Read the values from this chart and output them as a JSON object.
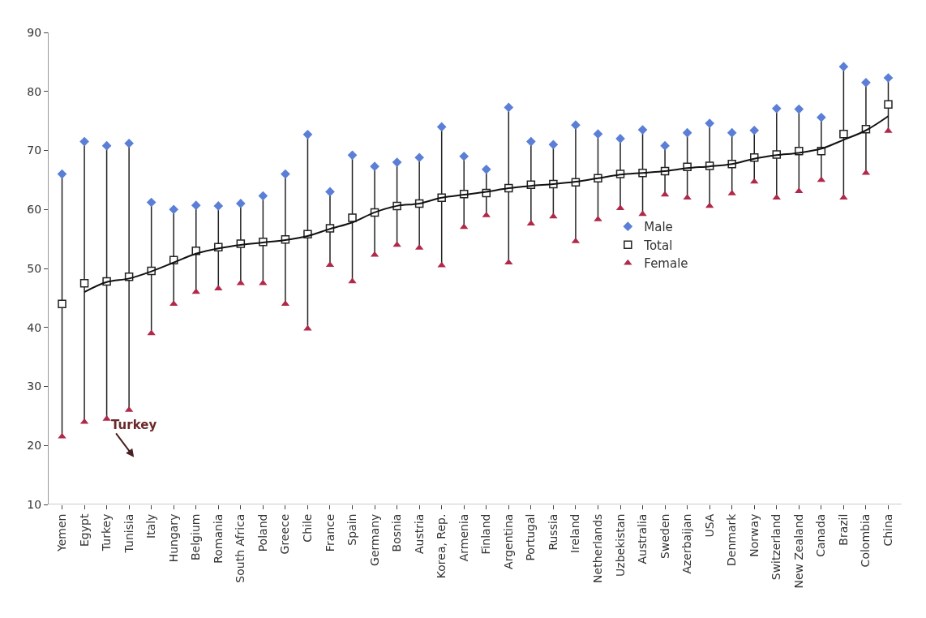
{
  "chart_data": {
    "type": "scatter",
    "categories": [
      "Yemen",
      "Egypt",
      "Turkey",
      "Tunisia",
      "Italy",
      "Hungary",
      "Belgium",
      "Romania",
      "South Africa",
      "Poland",
      "Greece",
      "Chile",
      "France",
      "Spain",
      "Germany",
      "Bosnia",
      "Austria",
      "Korea, Rep.",
      "Armenia",
      "Finland",
      "Argentina",
      "Portugal",
      "Russia",
      "Ireland",
      "Netherlands",
      "Uzbekistan",
      "Australia",
      "Sweden",
      "Azerbaijan",
      "USA",
      "Denmark",
      "Norway",
      "Switzerland",
      "New Zealand",
      "Canada",
      "Brazil",
      "Colombia",
      "China"
    ],
    "series": [
      {
        "name": "Male",
        "color": "#5b7fd6",
        "marker": "diamond",
        "values": [
          66,
          71.5,
          70.8,
          71.2,
          61.2,
          60,
          60.7,
          60.6,
          61,
          62.3,
          66,
          72.7,
          63,
          69.2,
          67.3,
          68,
          68.8,
          74,
          69,
          66.8,
          77.3,
          71.5,
          71,
          74.3,
          72.8,
          72,
          73.5,
          70.8,
          73,
          74.6,
          73,
          73.4,
          77.1,
          77,
          75.6,
          84.2,
          81.5,
          82.3
        ]
      },
      {
        "name": "Total",
        "color": "#222222",
        "marker": "square",
        "values": [
          44,
          47.5,
          47.8,
          48.6,
          49.6,
          51.4,
          53,
          53.6,
          54.2,
          54.5,
          54.9,
          55.8,
          56.8,
          58.6,
          59.5,
          60.6,
          61,
          62,
          62.6,
          62.8,
          63.6,
          64.2,
          64.3,
          64.6,
          65.3,
          66,
          66.2,
          66.5,
          67.2,
          67.4,
          67.7,
          68.8,
          69.3,
          69.9,
          69.9,
          72.8,
          73.6,
          77.8
        ]
      },
      {
        "name": "Female",
        "color": "#b0294a",
        "marker": "triangle",
        "values": [
          21.5,
          24,
          24.5,
          26,
          39,
          44,
          46,
          46.6,
          47.5,
          47.5,
          44,
          39.8,
          50.6,
          47.8,
          52.3,
          54,
          53.5,
          50.5,
          57,
          59,
          51,
          57.6,
          58.8,
          54.6,
          58.3,
          60.2,
          59.2,
          62.5,
          62,
          60.6,
          62.7,
          64.7,
          62,
          63.1,
          65,
          62,
          66.2,
          73.3
        ]
      },
      {
        "type": "line",
        "color": "#111111",
        "values": [
          null,
          46,
          47.7,
          48.3,
          49.5,
          51,
          52.5,
          53.4,
          54,
          54.4,
          54.8,
          55.5,
          56.7,
          57.8,
          59.5,
          60.6,
          61,
          62,
          62.5,
          63,
          63.6,
          64,
          64.3,
          64.7,
          65.3,
          65.9,
          66.2,
          66.5,
          67,
          67.3,
          67.7,
          68.6,
          69.2,
          69.6,
          70.3,
          71.8,
          73.4,
          75.8
        ]
      }
    ],
    "ylim": [
      10,
      90
    ],
    "yticks": [
      10,
      20,
      30,
      40,
      50,
      60,
      70,
      80,
      90
    ],
    "legend": "right",
    "annotations": [
      "Turkey"
    ]
  }
}
